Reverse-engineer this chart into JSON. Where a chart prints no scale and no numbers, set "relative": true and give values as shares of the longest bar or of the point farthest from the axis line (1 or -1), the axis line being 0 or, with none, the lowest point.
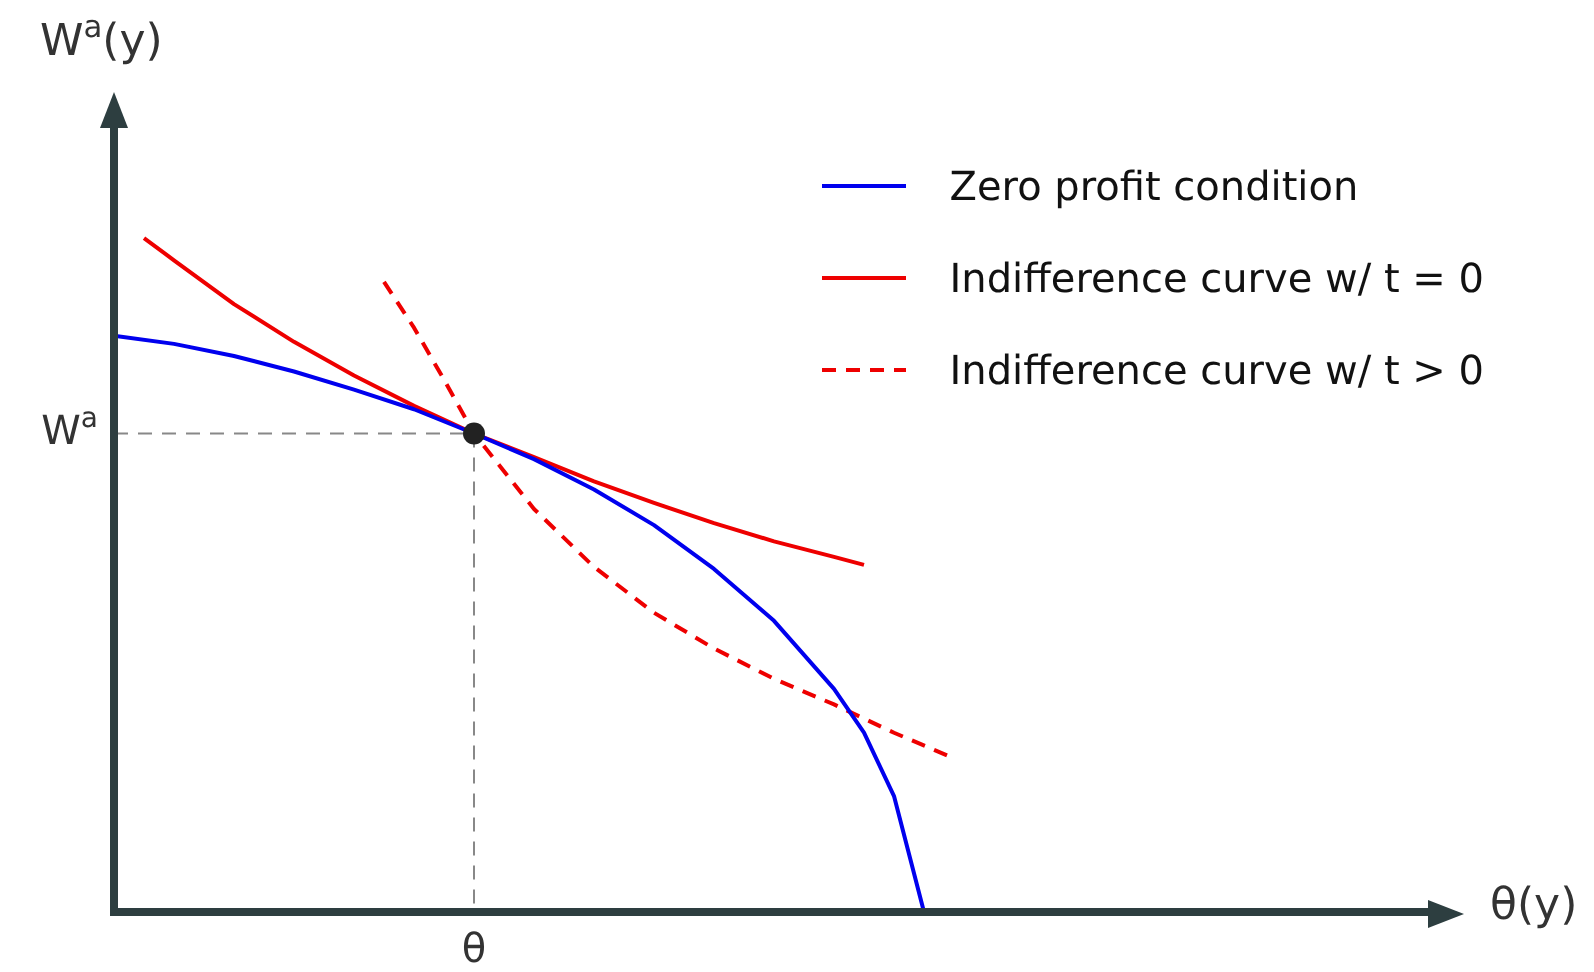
{
  "chart_data": {
    "type": "line",
    "relative": true,
    "xlabel": "θ(y)",
    "ylabel": "W$^{a}$(y)",
    "categories": [
      null,
      null,
      null,
      null,
      null,
      null,
      null,
      null,
      null,
      null,
      null,
      null,
      null,
      null,
      null,
      null,
      null,
      null,
      null,
      null,
      null,
      null,
      null,
      null,
      null,
      null,
      null,
      null,
      null,
      null,
      null,
      null,
      null,
      null,
      null,
      null,
      null,
      null,
      null,
      null,
      null,
      null,
      null,
      null,
      null
    ],
    "series": [
      {
        "name": "Zero profit condition",
        "color": "#0000ee",
        "values": [
          0.855,
          null,
          0.843,
          null,
          0.825,
          null,
          0.802,
          null,
          0.775,
          null,
          0.746,
          null,
          0.71,
          null,
          0.672,
          null,
          0.627,
          null,
          0.574,
          null,
          0.509,
          null,
          0.432,
          null,
          0.331,
          0.266,
          0.172,
          0,
          null,
          null,
          null,
          null,
          null,
          null,
          null,
          null,
          null,
          null,
          null,
          null,
          null,
          null,
          null,
          null,
          null
        ]
      },
      {
        "name": "Indifference curve w/ t = 0",
        "color": "#ee0000",
        "values": [
          null,
          1,
          0.967,
          null,
          0.902,
          null,
          0.846,
          null,
          0.796,
          null,
          0.751,
          null,
          0.71,
          null,
          0.675,
          null,
          0.639,
          null,
          0.607,
          null,
          0.577,
          null,
          0.55,
          null,
          0.527,
          0.515,
          null,
          null,
          null,
          null,
          null,
          null,
          null,
          null,
          null,
          null,
          null,
          null,
          null,
          null,
          null,
          null,
          null,
          null,
          null
        ]
      },
      {
        "name": "Indifference curve w/ t > 0",
        "color": "#ee0000",
        "line_style": "dashed",
        "values": [
          null,
          null,
          null,
          null,
          null,
          null,
          null,
          null,
          null,
          0.935,
          0.867,
          0.79,
          0.71,
          null,
          0.598,
          null,
          0.512,
          null,
          0.444,
          null,
          0.391,
          null,
          0.346,
          null,
          0.308,
          null,
          0.266,
          null,
          0.228,
          null,
          null,
          null,
          null,
          null,
          null,
          null,
          null,
          null,
          null,
          null,
          null,
          null,
          null,
          null,
          null
        ]
      }
    ],
    "ref_lines": [
      {
        "axis": "y",
        "value": 0.71,
        "label": "W$^{a}$",
        "color": "#888888",
        "line_style": "dashed"
      }
    ],
    "annotations": [
      "θ"
    ],
    "legend": "top right"
  }
}
